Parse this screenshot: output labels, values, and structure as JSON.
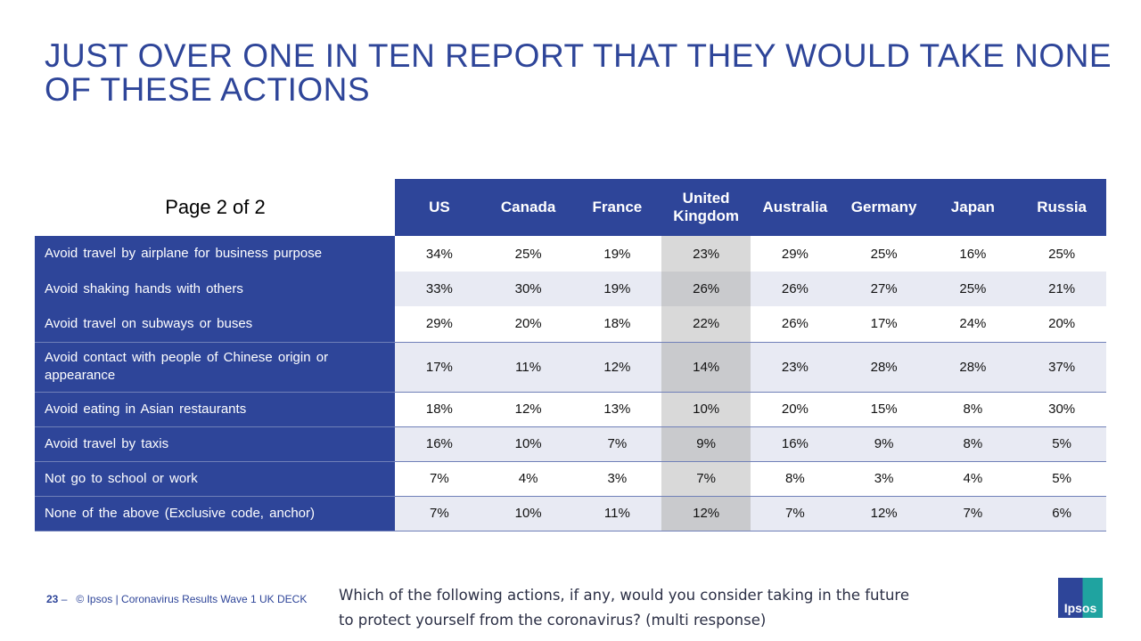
{
  "title": "JUST OVER ONE IN TEN REPORT THAT THEY WOULD TAKE NONE OF THESE ACTIONS",
  "page_label": "Page 2 of 2",
  "columns": [
    "US",
    "Canada",
    "France",
    "United Kingdom",
    "Australia",
    "Germany",
    "Japan",
    "Russia"
  ],
  "rows": [
    {
      "label": "Avoid travel by airplane for business purpose",
      "values": [
        "34%",
        "25%",
        "19%",
        "23%",
        "29%",
        "25%",
        "16%",
        "25%"
      ]
    },
    {
      "label": "Avoid shaking hands with others",
      "values": [
        "33%",
        "30%",
        "19%",
        "26%",
        "26%",
        "27%",
        "25%",
        "21%"
      ]
    },
    {
      "label": "Avoid travel on subways or buses",
      "values": [
        "29%",
        "20%",
        "18%",
        "22%",
        "26%",
        "17%",
        "24%",
        "20%"
      ]
    },
    {
      "label": "Avoid contact with people of Chinese origin or appearance",
      "values": [
        "17%",
        "11%",
        "12%",
        "14%",
        "23%",
        "28%",
        "28%",
        "37%"
      ]
    },
    {
      "label": "Avoid eating in Asian restaurants",
      "values": [
        "18%",
        "12%",
        "13%",
        "10%",
        "20%",
        "15%",
        "8%",
        "30%"
      ]
    },
    {
      "label": "Avoid travel by taxis",
      "values": [
        "16%",
        "10%",
        "7%",
        "9%",
        "16%",
        "9%",
        "8%",
        "5%"
      ]
    },
    {
      "label": "Not go to school or work",
      "values": [
        "7%",
        "4%",
        "3%",
        "7%",
        "8%",
        "3%",
        "4%",
        "5%"
      ]
    },
    {
      "label": "None of the above (Exclusive code, anchor)",
      "values": [
        "7%",
        "10%",
        "11%",
        "12%",
        "7%",
        "12%",
        "7%",
        "6%"
      ]
    }
  ],
  "footer": {
    "page_number": "23",
    "separator": "–",
    "source": "© Ipsos | Coronavirus Results Wave 1 UK DECK"
  },
  "question": "Which of the following actions, if any, would you consider taking in the future to protect yourself from the coronavirus? (multi response)",
  "logo_text": "Ipsos",
  "colors": {
    "brand": "#2e4599",
    "highlight_column": "#d9d9d9",
    "alt_row": "#e8eaf3"
  }
}
